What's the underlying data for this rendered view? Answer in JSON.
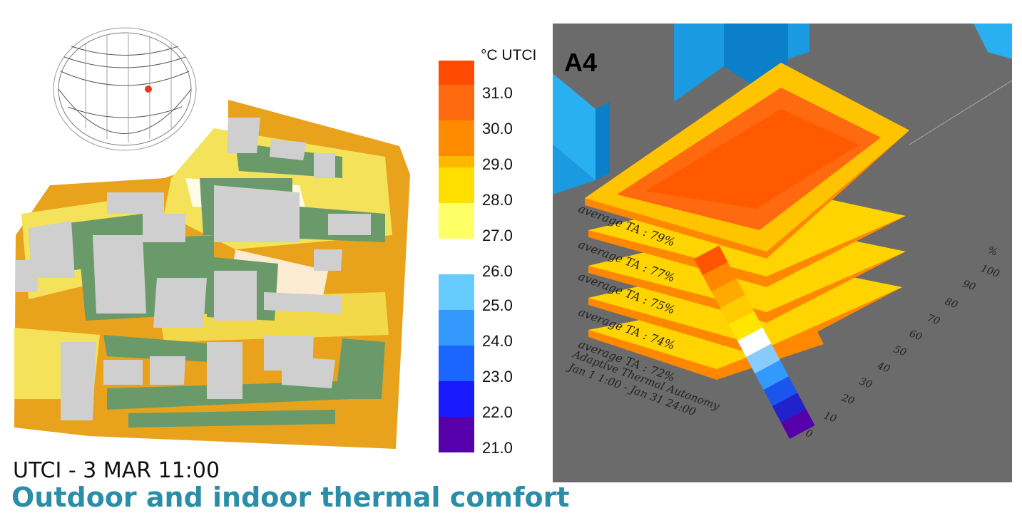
{
  "left_panel": {
    "utci_legend": {
      "unit": "°C UTCI",
      "warm_ticks": [
        "31.0",
        "30.0",
        "29.0",
        "28.0",
        "27.0"
      ],
      "cool_ticks": [
        "26.0",
        "25.0",
        "24.0",
        "23.0",
        "22.0",
        "21.0"
      ],
      "warm_colors": [
        "#ff4a00",
        "#ff6a10",
        "#ff8c00",
        "#ffb800",
        "#ffde00",
        "#ffff66"
      ],
      "cool_colors": [
        "#66ccff",
        "#3399ff",
        "#1a66ff",
        "#1a1aff",
        "#3300cc",
        "#5500aa"
      ]
    },
    "map_title": "UTCI - 3 MAR 11:00",
    "section_heading": "Outdoor and indoor thermal comfort"
  },
  "right_panel": {
    "label": "A4",
    "floor_labels": [
      "average TA : 79%",
      "average TA : 77%",
      "average TA : 75%",
      "average TA : 74%",
      "average TA : 72%"
    ],
    "caption_line1": "Adaptive Thermal Autonomy",
    "caption_line2": "Jan 1 1:00 - Jan 31 24:00",
    "ta_legend": {
      "unit": "%",
      "ticks": [
        "100",
        "90",
        "80",
        "70",
        "60",
        "50",
        "40",
        "30",
        "20",
        "10",
        "0"
      ],
      "colors": [
        "#5500aa",
        "#2222cc",
        "#1a55ee",
        "#3399ff",
        "#88ccff",
        "#ffffff",
        "#ffe600",
        "#ffcc00",
        "#ffaa00",
        "#ff8800",
        "#ff5500"
      ]
    }
  }
}
